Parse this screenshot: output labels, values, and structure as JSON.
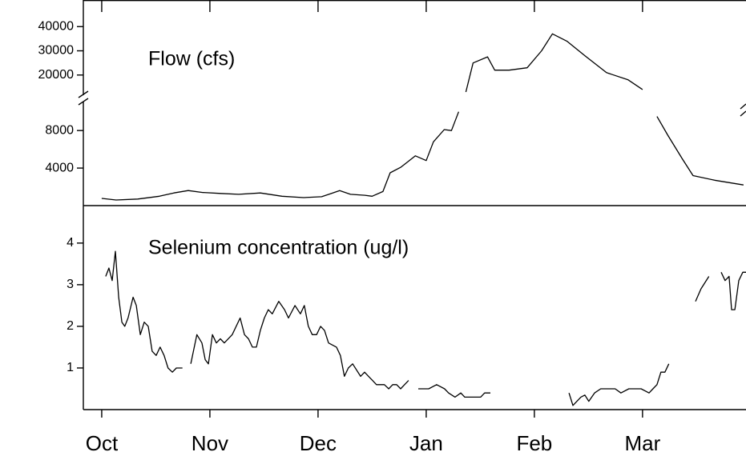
{
  "chart_data": [
    {
      "type": "line",
      "title": "Flow (cfs)",
      "color": "#000000",
      "axis_break": true,
      "xlim": [
        -5.1,
        178.7
      ],
      "ylim": [
        0,
        11000
      ],
      "yticks": [
        4000,
        8000
      ],
      "upper_ylim": [
        11000,
        51000
      ],
      "upper_yticks": [
        20000,
        30000,
        40000
      ],
      "x": [
        0,
        4,
        10,
        16,
        20,
        24,
        28,
        33,
        38,
        44,
        50,
        56,
        61,
        63,
        66,
        69,
        73,
        75,
        78,
        80,
        83,
        87,
        90,
        92,
        95,
        97,
        99,
        100,
        101,
        103,
        107,
        109,
        113,
        118,
        122,
        125,
        129,
        134,
        140,
        146,
        150,
        152,
        154,
        157,
        161,
        164,
        170,
        178
      ],
      "values": [
        770,
        600,
        700,
        1000,
        1350,
        1600,
        1400,
        1300,
        1200,
        1350,
        1000,
        850,
        950,
        1200,
        1600,
        1200,
        1100,
        1000,
        1500,
        3500,
        4100,
        5300,
        4800,
        6800,
        8100,
        8000,
        10000,
        null,
        13000,
        25000,
        27500,
        22000,
        22000,
        23000,
        30000,
        37000,
        34000,
        28000,
        21000,
        18000,
        14000,
        null,
        9500,
        7500,
        5000,
        3200,
        2700,
        2200
      ]
    },
    {
      "type": "line",
      "title": "Selenium concentration (ug/l)",
      "color": "#000000",
      "xlim": [
        -5.1,
        178.7
      ],
      "xticks": [
        {
          "value": 0,
          "label": "Oct"
        },
        {
          "value": 30,
          "label": "Nov"
        },
        {
          "value": 60,
          "label": "Dec"
        },
        {
          "value": 90,
          "label": "Jan"
        },
        {
          "value": 120,
          "label": "Feb"
        },
        {
          "value": 150,
          "label": "Mar"
        }
      ],
      "ylim": [
        0,
        4.9
      ],
      "yticks": [
        1,
        2,
        3,
        4
      ],
      "x": [
        1.1,
        2,
        2.9,
        3.8,
        4.7,
        5.6,
        6.4,
        7.3,
        8.7,
        9.6,
        10.7,
        11.8,
        12.9,
        14,
        15.1,
        16.2,
        17.3,
        18.4,
        19.6,
        20.7,
        22.4,
        23.5,
        24.7,
        26.4,
        27.8,
        28.7,
        29.6,
        30.7,
        31.8,
        32.9,
        34,
        36.2,
        38.4,
        39.6,
        40.7,
        41.8,
        42.9,
        44,
        45.1,
        46.2,
        47.3,
        49.1,
        50.7,
        51.8,
        53.6,
        55.1,
        56.2,
        57.3,
        58.4,
        59.6,
        60.7,
        61.8,
        62.9,
        65.1,
        66.2,
        67.3,
        68.4,
        69.6,
        71.8,
        72.9,
        74,
        75.1,
        76.2,
        78.4,
        79.6,
        80.7,
        81.8,
        82.9,
        84,
        85.1,
        86.5,
        87.8,
        90.7,
        92.9,
        95.1,
        96.2,
        98,
        99.6,
        100.7,
        101.8,
        102.9,
        105.1,
        106.2,
        107.8,
        118,
        129.6,
        130.7,
        132.9,
        134,
        135.1,
        136.7,
        138.4,
        142.4,
        144,
        146.2,
        149.6,
        151.8,
        152.9,
        154,
        155.1,
        156.2,
        157.3,
        161,
        164.7,
        166.2,
        168.4,
        170,
        171.8,
        172.9,
        174,
        174.7,
        175.6,
        176.7,
        177.8,
        178.7
      ],
      "values": [
        3.2,
        3.4,
        3.1,
        3.8,
        2.7,
        2.1,
        2.0,
        2.2,
        2.7,
        2.5,
        1.8,
        2.1,
        2.0,
        1.4,
        1.3,
        1.5,
        1.3,
        1.0,
        0.9,
        1.0,
        1.0,
        null,
        1.1,
        1.8,
        1.6,
        1.2,
        1.1,
        1.8,
        1.6,
        1.7,
        1.6,
        1.8,
        2.2,
        1.8,
        1.7,
        1.5,
        1.5,
        1.9,
        2.2,
        2.4,
        2.3,
        2.6,
        2.4,
        2.2,
        2.5,
        2.3,
        2.5,
        2.0,
        1.8,
        1.8,
        2.0,
        1.9,
        1.6,
        1.5,
        1.3,
        0.8,
        1.0,
        1.1,
        0.8,
        0.9,
        0.8,
        0.7,
        0.6,
        0.6,
        0.5,
        0.6,
        0.6,
        0.5,
        0.6,
        0.7,
        null,
        0.5,
        0.5,
        0.6,
        0.5,
        0.4,
        0.3,
        0.4,
        0.3,
        0.3,
        0.3,
        0.3,
        0.4,
        0.4,
        null,
        0.4,
        0.1,
        0.3,
        0.35,
        0.2,
        0.4,
        0.5,
        0.5,
        0.4,
        0.5,
        0.5,
        0.4,
        0.5,
        0.6,
        0.9,
        0.9,
        1.1,
        null,
        2.6,
        2.9,
        3.2,
        null,
        3.3,
        3.1,
        3.2,
        2.4,
        2.4,
        3.1,
        3.3,
        3.3
      ]
    }
  ]
}
